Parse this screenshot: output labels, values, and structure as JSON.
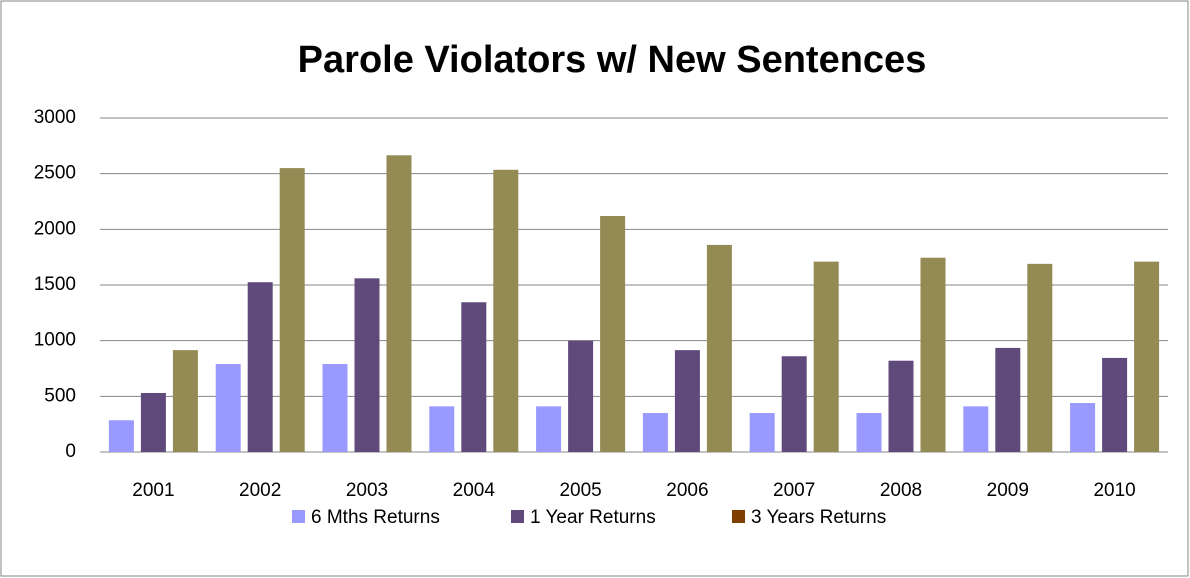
{
  "chart_data": {
    "type": "bar",
    "title": "Parole Violators w/ New Sentences",
    "categories": [
      "2001",
      "2002",
      "2003",
      "2004",
      "2005",
      "2006",
      "2007",
      "2008",
      "2009",
      "2010"
    ],
    "series": [
      {
        "name": "6 Mths Returns",
        "color": "#9999ff",
        "values": [
          285,
          790,
          790,
          410,
          410,
          350,
          350,
          350,
          410,
          440
        ]
      },
      {
        "name": "1 Year Returns",
        "color": "#604a7b",
        "values": [
          530,
          1525,
          1560,
          1345,
          1000,
          915,
          860,
          820,
          935,
          845
        ]
      },
      {
        "name": "3 Years Returns",
        "color": "#948a54",
        "legend_color": "#7f3f00",
        "values": [
          915,
          2550,
          2665,
          2535,
          2120,
          1860,
          1710,
          1745,
          1690,
          1710
        ]
      }
    ],
    "ylim": [
      0,
      3000
    ],
    "yticks": [
      0,
      500,
      1000,
      1500,
      2000,
      2500,
      3000
    ],
    "grid": true,
    "legend": "bottom"
  }
}
